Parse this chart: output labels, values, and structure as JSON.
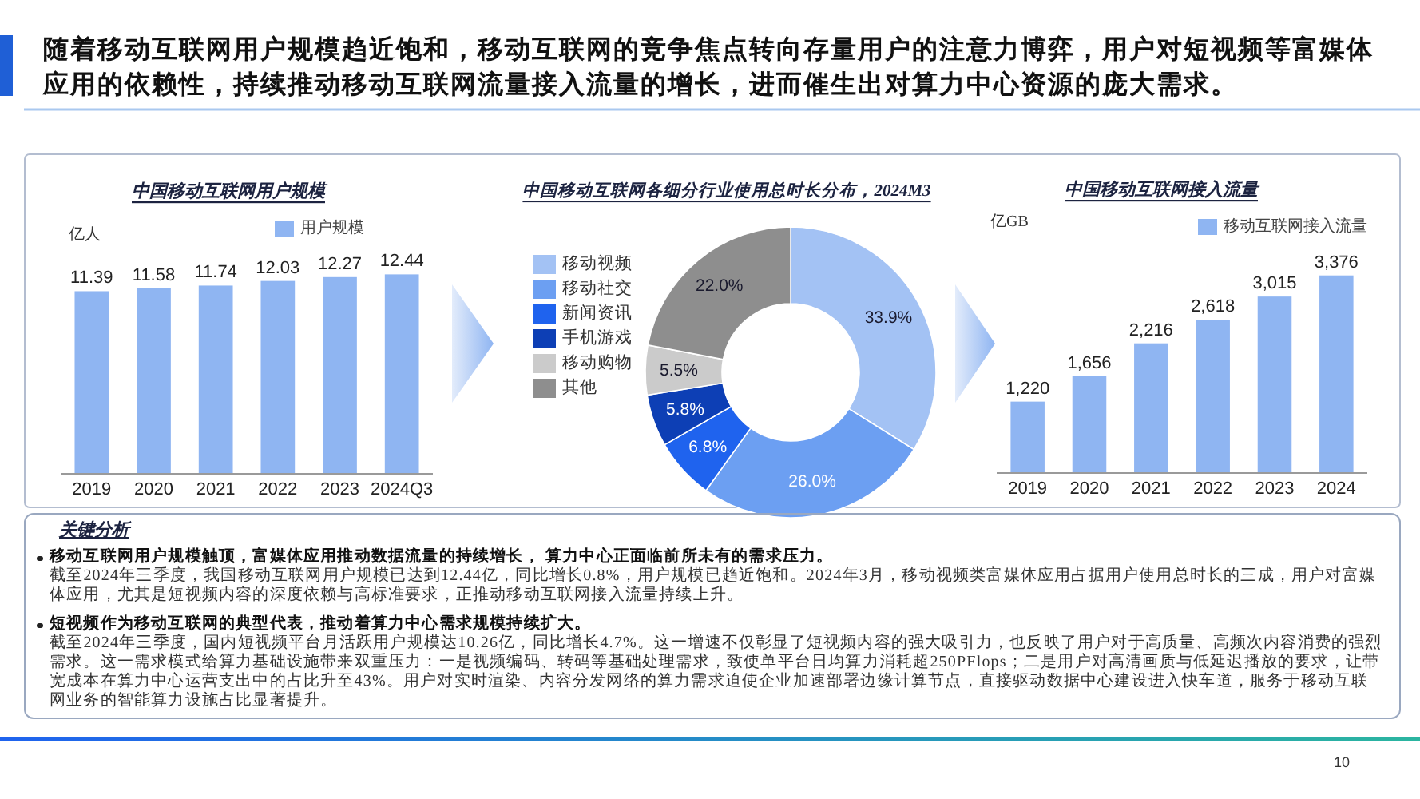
{
  "chart_data": [
    {
      "type": "other",
      "title": "随着移动互联网用户规模趋近饱和，移动互联网的竞争焦点转向存量用户的注意力博弈，用户对短视频等富媒体应用的依赖性，持续推动移动互联网流量接入流量的增长，进而催生出对算力中心资源的庞大需求。"
    },
    {
      "type": "bar",
      "title": "中国移动互联网用户规模",
      "ylabel": "亿人",
      "categories": [
        "2019",
        "2020",
        "2021",
        "2022",
        "2023",
        "2024Q3"
      ],
      "series": [
        {
          "name": "用户规模",
          "color": "#8fb5f2",
          "values": [
            11.39,
            11.58,
            11.74,
            12.03,
            12.27,
            12.44
          ]
        }
      ],
      "data_labels": true,
      "legend": "top",
      "tick_labels": "x"
    },
    {
      "type": "donut",
      "title": "中国移动互联网各细分行业使用总时长分布，2024M3",
      "categories": [
        "移动视频",
        "移动社交",
        "新闻资讯",
        "手机游戏",
        "移动购物",
        "其他"
      ],
      "values": [
        33.9,
        26.0,
        6.8,
        5.8,
        5.5,
        22.0
      ],
      "value_labels": [
        "33.9%",
        "26.0%",
        "6.8%",
        "5.8%",
        "5.5%",
        "22.0%"
      ],
      "colors": [
        "#a3c2f4",
        "#6c9ff2",
        "#1f63ee",
        "#0d3fb5",
        "#cbcbcb",
        "#8e8e8e"
      ],
      "legend": "left"
    },
    {
      "type": "bar",
      "title": "中国移动互联网接入流量",
      "ylabel": "亿GB",
      "categories": [
        "2019",
        "2020",
        "2021",
        "2022",
        "2023",
        "2024"
      ],
      "series": [
        {
          "name": "移动互联网接入流量",
          "color": "#8fb5f2",
          "values": [
            1220,
            1656,
            2216,
            2618,
            3015,
            3376
          ],
          "value_labels": [
            "1,220",
            "1,656",
            "2,216",
            "2,618",
            "3,015",
            "3,376"
          ]
        }
      ],
      "legend": "top right",
      "tick_labels": "x"
    },
    {
      "type": "other",
      "title": "关键分析",
      "annotations": [
        "移动互联网用户规模触顶，富媒体应用推动数据流量的持续增长， 算力中心正面临前所未有的需求压力。",
        "截至2024年三季度，我国移动互联网用户规模已达到12.44亿，同比增长0.8%，用户规模已趋近饱和。2024年3月，移动视频类富媒体应用占据用户使用总时长的三成，用户对富媒体应用，尤其是短视频内容的深度依赖与高标准要求，正推动移动互联网接入流量持续上升。",
        "短视频作为移动互联网的典型代表，推动着算力中心需求规模持续扩大。",
        "截至2024年三季度，国内短视频平台月活跃用户规模达10.26亿，同比增长4.7%。这一增速不仅彰显了短视频内容的强大吸引力，也反映了用户对于高质量、高频次内容消费的强烈需求。这一需求模式给算力基础设施带来双重压力：一是视频编码、转码等基础处理需求，致使单平台日均算力消耗超250PFlops；二是用户对高清画质与低延迟播放的要求，让带宽成本在算力中心运营支出中的占比升至43%。用户对实时渲染、内容分发网络的算力需求迫使企业加速部署边缘计算节点，直接驱动数据中心建设进入快车道，服务于移动互联网业务的智能算力设施占比显著提升。"
      ]
    },
    {
      "type": "other",
      "annotations": [
        "10"
      ]
    }
  ]
}
